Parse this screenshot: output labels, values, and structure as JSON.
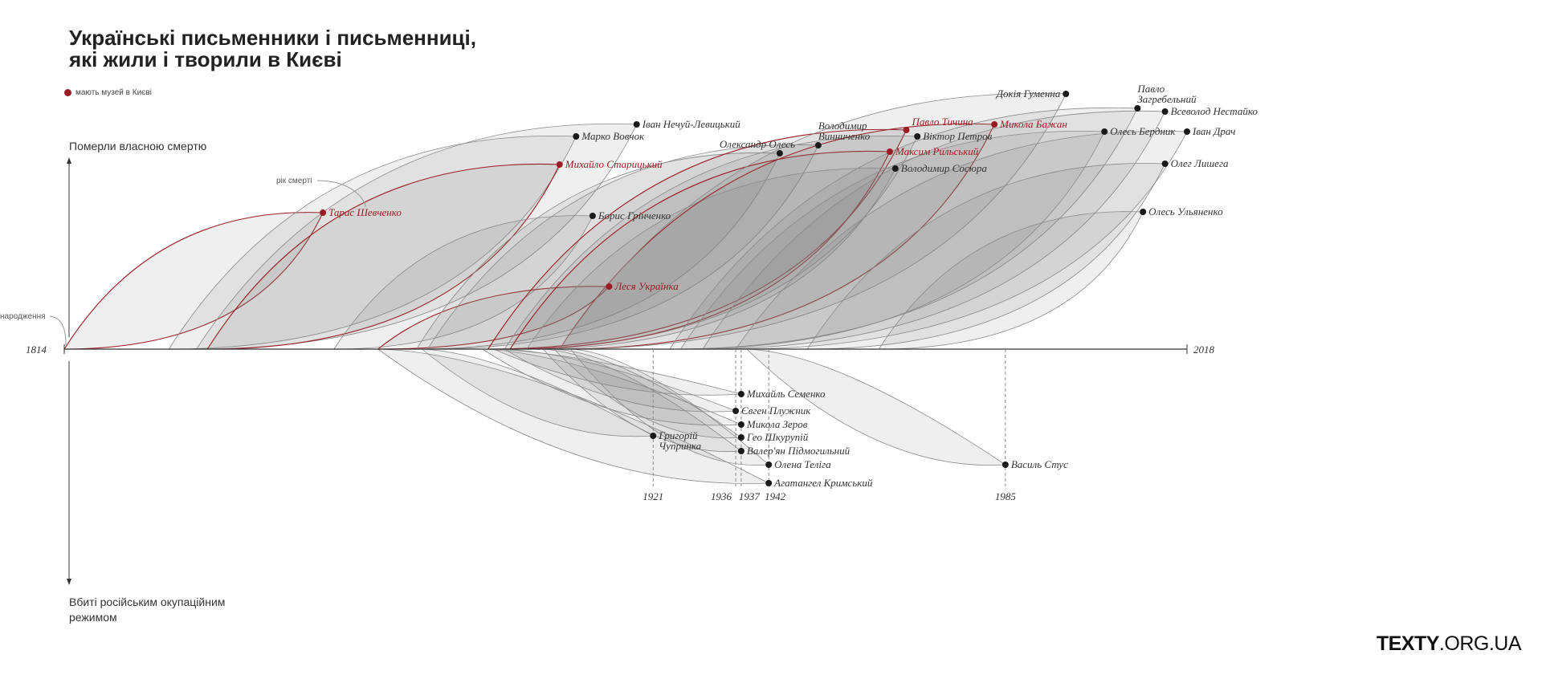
{
  "title": {
    "line1": "Українські письменники і письменниці,",
    "line2": "які жили і творили в Києві"
  },
  "legend": {
    "museum_label": "мають музей в Києві"
  },
  "axis": {
    "up_label": "Померли власною смертю",
    "down_label": "Вбиті російським окупаційним режимом",
    "birth_label": "народження",
    "death_label": "рік смерті",
    "start_year": "1814",
    "end_year": "2018"
  },
  "colors": {
    "museum": "#9b1c24",
    "regular": "#1a1a1a"
  },
  "logo": {
    "bold": "TEXTY",
    "rest": ".ORG.UA"
  },
  "chart_data": {
    "type": "arc-timeline",
    "xlim": [
      1814,
      2018
    ],
    "natural_death": [
      {
        "name": "Тарас Шевченко",
        "born": 1814,
        "died": 1861,
        "museum": true
      },
      {
        "name": "Марко Вовчок",
        "born": 1833,
        "died": 1907,
        "museum": false
      },
      {
        "name": "Іван Нечуй-Левицький",
        "born": 1838,
        "died": 1918,
        "museum": false
      },
      {
        "name": "Михайло Старицький",
        "born": 1840,
        "died": 1904,
        "museum": true
      },
      {
        "name": "Борис Грінченко",
        "born": 1863,
        "died": 1910,
        "museum": false
      },
      {
        "name": "Леся Українка",
        "born": 1871,
        "died": 1913,
        "museum": true
      },
      {
        "name": "Олександр Олесь",
        "born": 1878,
        "died": 1944,
        "museum": false
      },
      {
        "name": "Володимир Винниченко",
        "born": 1880,
        "died": 1951,
        "museum": false
      },
      {
        "name": "Павло Тичина",
        "born": 1891,
        "died": 1967,
        "museum": true
      },
      {
        "name": "Віктор Петров",
        "born": 1894,
        "died": 1969,
        "museum": false
      },
      {
        "name": "Максим Рильський",
        "born": 1895,
        "died": 1964,
        "museum": true
      },
      {
        "name": "Володимир Сосюра",
        "born": 1898,
        "died": 1965,
        "museum": false
      },
      {
        "name": "Микола Бажан",
        "born": 1904,
        "died": 1983,
        "museum": true
      },
      {
        "name": "Докія Гуменна",
        "born": 1904,
        "died": 1996,
        "museum": false
      },
      {
        "name": "Павло Загребельний",
        "born": 1924,
        "died": 2009,
        "museum": false
      },
      {
        "name": "Всеволод Нестайко",
        "born": 1930,
        "died": 2014,
        "museum": false
      },
      {
        "name": "Олесь Бердник",
        "born": 1926,
        "died": 2003,
        "museum": false
      },
      {
        "name": "Іван Драч",
        "born": 1936,
        "died": 2018,
        "museum": false
      },
      {
        "name": "Олег Лишега",
        "born": 1949,
        "died": 2014,
        "museum": false
      },
      {
        "name": "Олесь Ульяненко",
        "born": 1962,
        "died": 2010,
        "museum": false
      }
    ],
    "killed": [
      {
        "name": "Михайль Семенко",
        "born": 1892,
        "died": 1937
      },
      {
        "name": "Євген Плужник",
        "born": 1894,
        "died": 1936
      },
      {
        "name": "Микола Зеров",
        "born": 1890,
        "died": 1937
      },
      {
        "name": "Гео Шкурупій",
        "born": 1903,
        "died": 1937
      },
      {
        "name": "Григорій Чупринка",
        "born": 1879,
        "died": 1921
      },
      {
        "name": "Валер'ян Підмогильний",
        "born": 1901,
        "died": 1937
      },
      {
        "name": "Олена Теліга",
        "born": 1906,
        "died": 1942
      },
      {
        "name": "Агатангел Кримський",
        "born": 1871,
        "died": 1942
      },
      {
        "name": "Василь Стус",
        "born": 1938,
        "died": 1985
      }
    ],
    "marked_years": [
      "1921",
      "1936",
      "1937",
      "1942",
      "1985"
    ]
  }
}
